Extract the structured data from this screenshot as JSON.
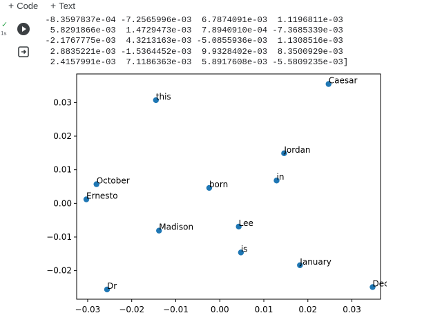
{
  "toolbar": {
    "add_code": "Code",
    "add_text": "Text"
  },
  "cell": {
    "status_time": "1s"
  },
  "output": {
    "matrix_lines": [
      " -8.3597837e-04 -7.2565996e-03  6.7874091e-03  1.1196811e-03",
      "  5.8291866e-03  1.4729473e-03  7.8940910e-04 -7.3685339e-03",
      " -2.1767775e-03  4.3213163e-03 -5.0855936e-03  1.1308516e-03",
      "  2.8835221e-03 -1.5364452e-03  9.9328402e-03  8.3500929e-03",
      "  2.4157991e-03  7.1186363e-03  5.8917608e-03 -5.5809235e-03]"
    ]
  },
  "chart_data": {
    "type": "scatter",
    "title": "",
    "xlabel": "",
    "ylabel": "",
    "xlim": [
      -0.0325,
      0.0365
    ],
    "ylim": [
      -0.0285,
      0.0385
    ],
    "xticks": [
      -0.03,
      -0.02,
      -0.01,
      0.0,
      0.01,
      0.02,
      0.03
    ],
    "xtick_labels": [
      "−0.03",
      "−0.02",
      "−0.01",
      "0.00",
      "0.01",
      "0.02",
      "0.03"
    ],
    "yticks": [
      -0.02,
      -0.01,
      0.0,
      0.01,
      0.02,
      0.03
    ],
    "ytick_labels": [
      "−0.02",
      "−0.01",
      "0.00",
      "0.01",
      "0.02",
      "0.03"
    ],
    "grid": false,
    "marker_color": "#1f77b4",
    "points": [
      {
        "label": "Caesar",
        "x": 0.0247,
        "y": 0.0355
      },
      {
        "label": "this",
        "x": -0.0145,
        "y": 0.0307
      },
      {
        "label": "Jordan",
        "x": 0.0146,
        "y": 0.0149
      },
      {
        "label": "in",
        "x": 0.0129,
        "y": 0.0068
      },
      {
        "label": "October",
        "x": -0.028,
        "y": 0.0057
      },
      {
        "label": "born",
        "x": -0.0024,
        "y": 0.0046
      },
      {
        "label": "Ernesto",
        "x": -0.0303,
        "y": 0.0012
      },
      {
        "label": "Lee",
        "x": 0.0043,
        "y": -0.0069
      },
      {
        "label": "Madison",
        "x": -0.0138,
        "y": -0.0081
      },
      {
        "label": "is",
        "x": 0.0048,
        "y": -0.0146
      },
      {
        "label": "January",
        "x": 0.0182,
        "y": -0.0184
      },
      {
        "label": "December",
        "x": 0.0347,
        "y": -0.0249
      },
      {
        "label": "Dr",
        "x": -0.0256,
        "y": -0.0256
      }
    ]
  }
}
